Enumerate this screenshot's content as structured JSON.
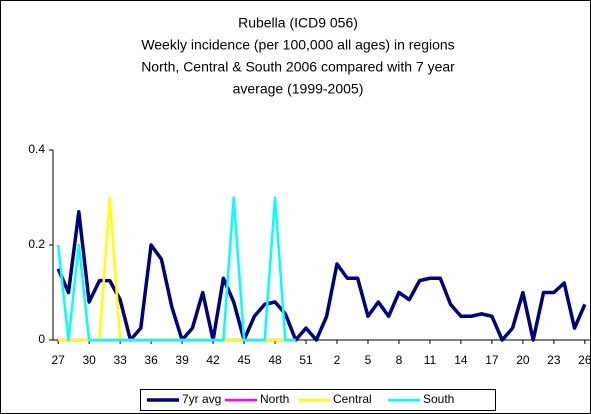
{
  "chart_data": {
    "type": "line",
    "title": [
      "Rubella (ICD9 056)",
      "Weekly incidence (per 100,000 all ages) in regions",
      "North, Central & South 2006 compared with 7 year",
      "average (1999-2005)"
    ],
    "categories": [
      "27",
      null,
      null,
      "30",
      null,
      null,
      "33",
      null,
      null,
      "36",
      null,
      null,
      "39",
      null,
      null,
      "42",
      null,
      null,
      "45",
      null,
      null,
      "48",
      null,
      null,
      "51",
      null,
      null,
      "2",
      null,
      null,
      "5",
      null,
      null,
      "8",
      null,
      null,
      "11",
      null,
      null,
      "14",
      null,
      null,
      "17",
      null,
      null,
      "20",
      null,
      null,
      "23",
      null,
      null,
      "26"
    ],
    "series": [
      {
        "name": "7yr avg",
        "color": "#000080",
        "values": [
          0.15,
          0.1,
          0.27,
          0.08,
          0.125,
          0.125,
          0.085,
          0,
          0.025,
          0.2,
          0.17,
          0.07,
          0,
          0.025,
          0.1,
          0,
          0.13,
          0.08,
          0,
          0.05,
          0.075,
          0.08,
          0.055,
          0,
          0.025,
          0,
          0.05,
          0.16,
          0.13,
          0.13,
          0.05,
          0.08,
          0.05,
          0.1,
          0.085,
          0.125,
          0.13,
          0.13,
          0.075,
          0.05,
          0.05,
          0.055,
          0.05,
          0,
          0.025,
          0.1,
          0,
          0.1,
          0.1,
          0.12,
          0.025,
          0.075
        ]
      },
      {
        "name": "North",
        "color": "#ff00ff",
        "values": [
          0,
          0,
          0,
          0,
          0,
          0,
          0,
          0,
          0,
          0,
          0,
          0,
          0,
          0,
          0,
          0,
          0,
          0,
          0,
          0,
          0,
          0,
          0,
          0,
          null,
          null,
          null,
          null,
          null,
          null,
          null,
          null,
          null,
          null,
          null,
          null,
          null,
          null,
          null,
          null,
          null,
          null,
          null,
          null,
          null,
          null,
          null,
          null,
          null,
          null,
          null,
          null
        ]
      },
      {
        "name": "Central",
        "color": "#ffff00",
        "values": [
          0,
          0,
          0,
          0,
          0,
          0.3,
          0,
          0,
          0,
          0,
          0,
          0,
          0,
          0,
          0,
          0,
          0,
          0,
          0,
          0,
          0,
          0,
          0,
          0,
          null,
          null,
          null,
          null,
          null,
          null,
          null,
          null,
          null,
          null,
          null,
          null,
          null,
          null,
          null,
          null,
          null,
          null,
          null,
          null,
          null,
          null,
          null,
          null,
          null,
          null,
          null,
          null
        ]
      },
      {
        "name": "South",
        "color": "#00ffff",
        "values": [
          0.2,
          0,
          0.2,
          0,
          0,
          0,
          0,
          0,
          0,
          0,
          0,
          0,
          0,
          0,
          0,
          0,
          0,
          0.3,
          0,
          0,
          0,
          0.3,
          0,
          0,
          null,
          null,
          null,
          null,
          null,
          null,
          null,
          null,
          null,
          null,
          null,
          null,
          null,
          null,
          null,
          null,
          null,
          null,
          null,
          null,
          null,
          null,
          null,
          null,
          null,
          null,
          null,
          null
        ]
      }
    ],
    "ylim": [
      0,
      0.4
    ],
    "yticks": [
      0,
      0.2,
      0.4
    ],
    "grid": false
  }
}
